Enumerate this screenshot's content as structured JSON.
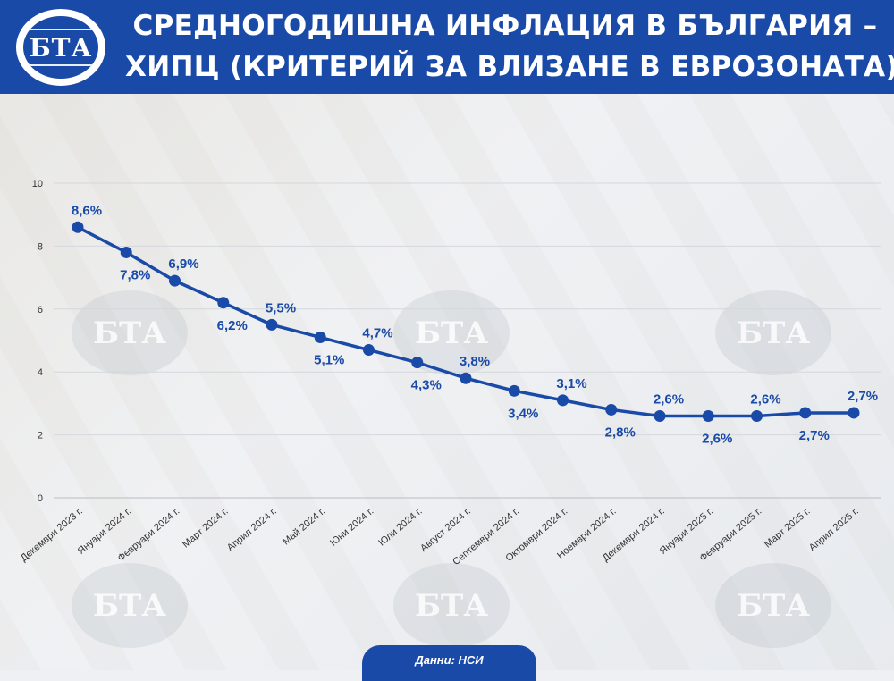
{
  "header": {
    "logo_text": "БТА",
    "title_line1": "СРЕДНОГОДИШНА ИНФЛАЦИЯ В БЪЛГАРИЯ –",
    "title_line2": "ХИПЦ (КРИТЕРИЙ ЗА ВЛИЗАНЕ В ЕВРОЗОНАТА)"
  },
  "watermark_text": "БТА",
  "footer": {
    "source": "Данни: НСИ"
  },
  "colors": {
    "brand": "#1a4aa8",
    "line": "#1a4aa8",
    "axis_text": "#333333"
  },
  "chart_data": {
    "type": "line",
    "title": "",
    "xlabel": "",
    "ylabel": "",
    "ylim": [
      0,
      10
    ],
    "yticks": [
      0,
      2,
      4,
      6,
      8,
      10
    ],
    "grid": true,
    "categories": [
      "Декември 2023 г.",
      "Януари 2024 г.",
      "Февруари 2024 г.",
      "Март 2024 г.",
      "Април 2024 г.",
      "Май 2024 г.",
      "Юни 2024 г.",
      "Юли 2024 г.",
      "Август 2024 г.",
      "Септември 2024 г.",
      "Октомври 2024 г.",
      "Ноември 2024 г.",
      "Декември 2024 г.",
      "Януари 2025 г.",
      "Февруари 2025 г.",
      "Март 2025 г.",
      "Април 2025 г."
    ],
    "values": [
      8.6,
      7.8,
      6.9,
      6.2,
      5.5,
      5.1,
      4.7,
      4.3,
      3.8,
      3.4,
      3.1,
      2.8,
      2.6,
      2.6,
      2.6,
      2.7,
      2.7
    ],
    "data_labels": [
      "8,6%",
      "7,8%",
      "6,9%",
      "6,2%",
      "5,5%",
      "5,1%",
      "4,7%",
      "4,3%",
      "3,8%",
      "3,4%",
      "3,1%",
      "2,8%",
      "2,6%",
      "2,6%",
      "2,6%",
      "2,7%",
      "2,7%"
    ],
    "label_positions": [
      "above",
      "below",
      "above",
      "below",
      "above",
      "below",
      "above",
      "below",
      "above",
      "below",
      "above",
      "below",
      "above",
      "below",
      "above",
      "below",
      "above"
    ]
  }
}
